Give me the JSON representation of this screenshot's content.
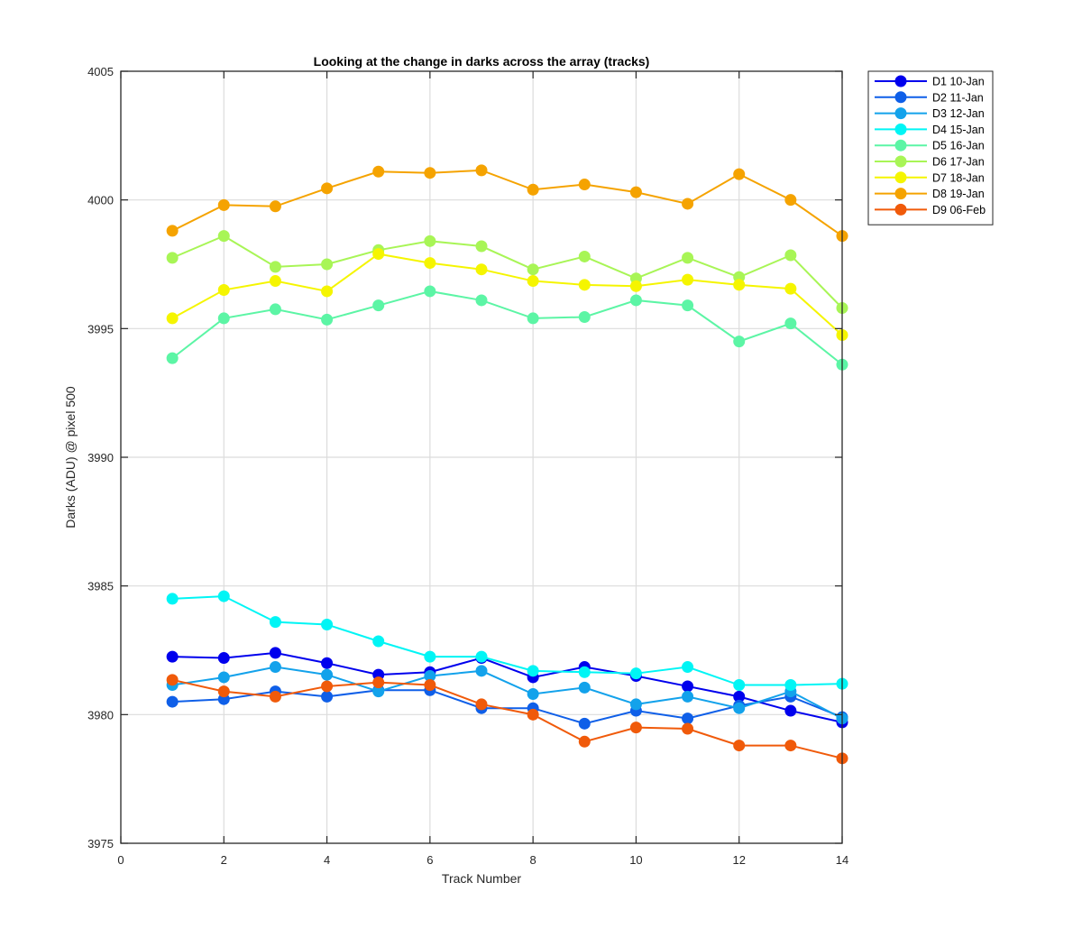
{
  "chart_data": {
    "type": "line",
    "title": "Looking at the change in darks across the array (tracks)",
    "xlabel": "Track Number",
    "ylabel": "Darks (ADU) @ pixel 500",
    "xlim": [
      0,
      14
    ],
    "ylim": [
      3975,
      4005
    ],
    "xticks": [
      0,
      2,
      4,
      6,
      8,
      10,
      12,
      14
    ],
    "yticks": [
      3975,
      3980,
      3985,
      3990,
      3995,
      4000,
      4005
    ],
    "grid": true,
    "legend_position": "outside-top-right",
    "x": [
      1,
      2,
      3,
      4,
      5,
      6,
      7,
      8,
      9,
      10,
      11,
      12,
      13,
      14
    ],
    "series": [
      {
        "name": "D1 10-Jan",
        "color": "#0000ed",
        "values": [
          3982.25,
          3982.2,
          3982.4,
          3982.0,
          3981.55,
          3981.65,
          3982.2,
          3981.45,
          3981.85,
          3981.5,
          3981.1,
          3980.7,
          3980.15,
          3979.7
        ]
      },
      {
        "name": "D2 11-Jan",
        "color": "#0f5fe8",
        "values": [
          3980.5,
          3980.6,
          3980.9,
          3980.7,
          3980.95,
          3980.95,
          3980.25,
          3980.25,
          3979.65,
          3980.15,
          3979.85,
          3980.35,
          3980.7,
          3979.9
        ]
      },
      {
        "name": "D3 12-Jan",
        "color": "#13a2eb",
        "values": [
          3981.15,
          3981.45,
          3981.85,
          3981.55,
          3980.9,
          3981.5,
          3981.7,
          3980.8,
          3981.05,
          3980.4,
          3980.7,
          3980.25,
          3980.9,
          3979.85
        ]
      },
      {
        "name": "D4 15-Jan",
        "color": "#00f5f5",
        "values": [
          3984.5,
          3984.6,
          3983.6,
          3983.5,
          3982.85,
          3982.25,
          3982.25,
          3981.7,
          3981.65,
          3981.6,
          3981.85,
          3981.15,
          3981.15,
          3981.2
        ]
      },
      {
        "name": "D5 16-Jan",
        "color": "#5cf5a5",
        "values": [
          3993.85,
          3995.4,
          3995.75,
          3995.35,
          3995.9,
          3996.45,
          3996.1,
          3995.4,
          3995.45,
          3996.1,
          3995.9,
          3994.5,
          3995.2,
          3993.6
        ]
      },
      {
        "name": "D6 17-Jan",
        "color": "#a8f556",
        "values": [
          3997.75,
          3998.6,
          3997.4,
          3997.5,
          3998.05,
          3998.4,
          3998.2,
          3997.3,
          3997.8,
          3996.95,
          3997.75,
          3997.0,
          3997.85,
          3995.8
        ]
      },
      {
        "name": "D7 18-Jan",
        "color": "#f5f500",
        "values": [
          3995.4,
          3996.5,
          3996.85,
          3996.45,
          3997.9,
          3997.55,
          3997.3,
          3996.85,
          3996.7,
          3996.65,
          3996.9,
          3996.7,
          3996.55,
          3994.75
        ]
      },
      {
        "name": "D8 19-Jan",
        "color": "#f5a300",
        "values": [
          3998.8,
          3999.8,
          3999.75,
          4000.45,
          4001.1,
          4001.05,
          4001.15,
          4000.4,
          4000.6,
          4000.3,
          3999.85,
          4001.0,
          4000.0,
          3998.6
        ]
      },
      {
        "name": "D9 06-Feb",
        "color": "#f05a0a",
        "values": [
          3981.35,
          3980.9,
          3980.7,
          3981.1,
          3981.25,
          3981.15,
          3980.4,
          3980.0,
          3978.95,
          3979.5,
          3979.45,
          3978.8,
          3978.8,
          3978.3
        ]
      }
    ]
  }
}
